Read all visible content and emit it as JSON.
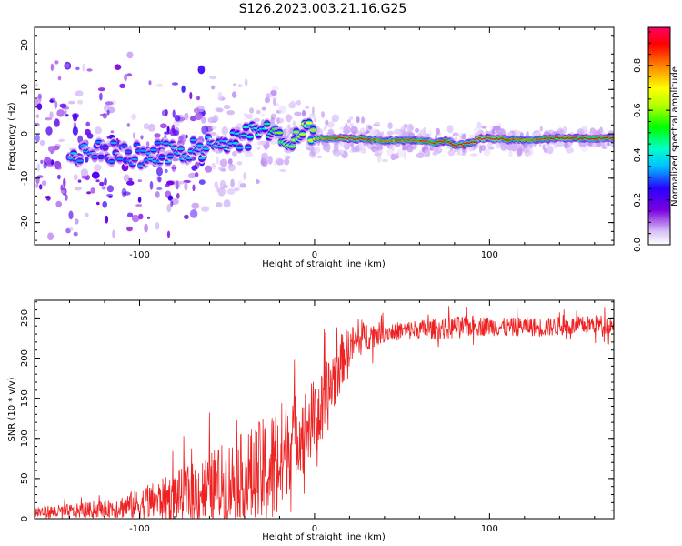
{
  "title": "S126.2023.003.21.16.G25",
  "chart_data": [
    {
      "type": "heatmap",
      "title": "S126.2023.003.21.16.G25",
      "xlabel": "Height of straight line (km)",
      "ylabel": "Frequency (Hz)",
      "xlim": [
        -160,
        171
      ],
      "ylim": [
        -25,
        24
      ],
      "xticks": [
        -100,
        0,
        100
      ],
      "xtick_labels": [
        "-100",
        "0",
        "100"
      ],
      "yticks": [
        20,
        10,
        0,
        -10,
        -20
      ],
      "ytick_labels": [
        "20",
        "10",
        "0",
        "-10",
        "-20"
      ],
      "colormap": [
        "#ffffff",
        "#c9a6f5",
        "#7a00e0",
        "#2a00ff",
        "#00bfff",
        "#00ffcc",
        "#00ff00",
        "#b5ff00",
        "#ffff00",
        "#ff8800",
        "#ff0000",
        "#ff0066"
      ],
      "colorbar": {
        "label": "Normalized spectral amplitude",
        "range": [
          0,
          0.97
        ],
        "ticks": [
          0.0,
          0.2,
          0.4,
          0.6,
          0.8
        ],
        "tick_labels": [
          "0.0",
          "0.2",
          "0.4",
          "0.6",
          "0.8"
        ]
      },
      "ridge_frequency": {
        "x": [
          -140,
          -120,
          -100,
          -80,
          -60,
          -40,
          -30,
          -25,
          -20,
          -15,
          -10,
          -5,
          0,
          20,
          40,
          60,
          70,
          75,
          80,
          85,
          90,
          95,
          100,
          120,
          140,
          171
        ],
        "y": [
          -4,
          -4,
          -5,
          -4,
          -3,
          -1,
          1,
          1.5,
          0.5,
          -1,
          0,
          0.5,
          -1,
          -1,
          -1.5,
          -1.5,
          -2,
          -1.5,
          -2.5,
          -2.5,
          -2,
          -1,
          -1,
          -1.5,
          -1,
          -1
        ]
      },
      "ridge_amplitude": {
        "x": [
          -140,
          -120,
          -100,
          -80,
          -60,
          -40,
          -30,
          -20,
          -10,
          0,
          20,
          40,
          60,
          80,
          100,
          120,
          140,
          171
        ],
        "y": [
          0.35,
          0.3,
          0.3,
          0.35,
          0.35,
          0.4,
          0.4,
          0.55,
          0.6,
          0.75,
          0.95,
          0.8,
          0.85,
          0.9,
          0.95,
          0.8,
          0.9,
          0.9
        ]
      },
      "noise_extent": {
        "x": [
          -160,
          -120,
          -80,
          -40,
          0,
          40,
          80,
          120,
          171
        ],
        "y": [
          24,
          22,
          18,
          12,
          5,
          4,
          3,
          3,
          2
        ]
      }
    },
    {
      "type": "line",
      "xlabel": "Height of straight line (km)",
      "ylabel": "SNR (10 * v/v)",
      "xlim": [
        -160,
        171
      ],
      "ylim": [
        0,
        272
      ],
      "xticks": [
        -100,
        0,
        100
      ],
      "xtick_labels": [
        "-100",
        "0",
        "100"
      ],
      "yticks": [
        0,
        50,
        100,
        150,
        200,
        250
      ],
      "ytick_labels": [
        "0",
        "50",
        "100",
        "150",
        "200",
        "250"
      ],
      "line_color": "#ee2222",
      "series": [
        {
          "x": [
            -160,
            -140,
            -120,
            -100,
            -90,
            -80,
            -70,
            -60,
            -50,
            -40,
            -30,
            -25,
            -20,
            -17,
            -16,
            -10,
            -5,
            0,
            5,
            10,
            15,
            20,
            30,
            40,
            50,
            60,
            70,
            80,
            90,
            100,
            110,
            120,
            130,
            140,
            150,
            160,
            171
          ],
          "y": [
            8,
            9,
            12,
            18,
            22,
            28,
            32,
            38,
            45,
            48,
            55,
            60,
            70,
            75,
            95,
            105,
            115,
            125,
            135,
            170,
            195,
            215,
            228,
            232,
            234,
            236,
            236,
            238,
            240,
            240,
            238,
            240,
            238,
            240,
            240,
            242,
            242
          ]
        }
      ],
      "noise_amplitude": {
        "x": [
          -160,
          -120,
          -100,
          -80,
          -60,
          -40,
          -30,
          -20,
          -10,
          0,
          10,
          20,
          40,
          60,
          80,
          100,
          140,
          171
        ],
        "y": [
          8,
          10,
          20,
          30,
          45,
          60,
          70,
          80,
          50,
          50,
          45,
          25,
          12,
          12,
          14,
          12,
          12,
          12
        ]
      }
    }
  ]
}
